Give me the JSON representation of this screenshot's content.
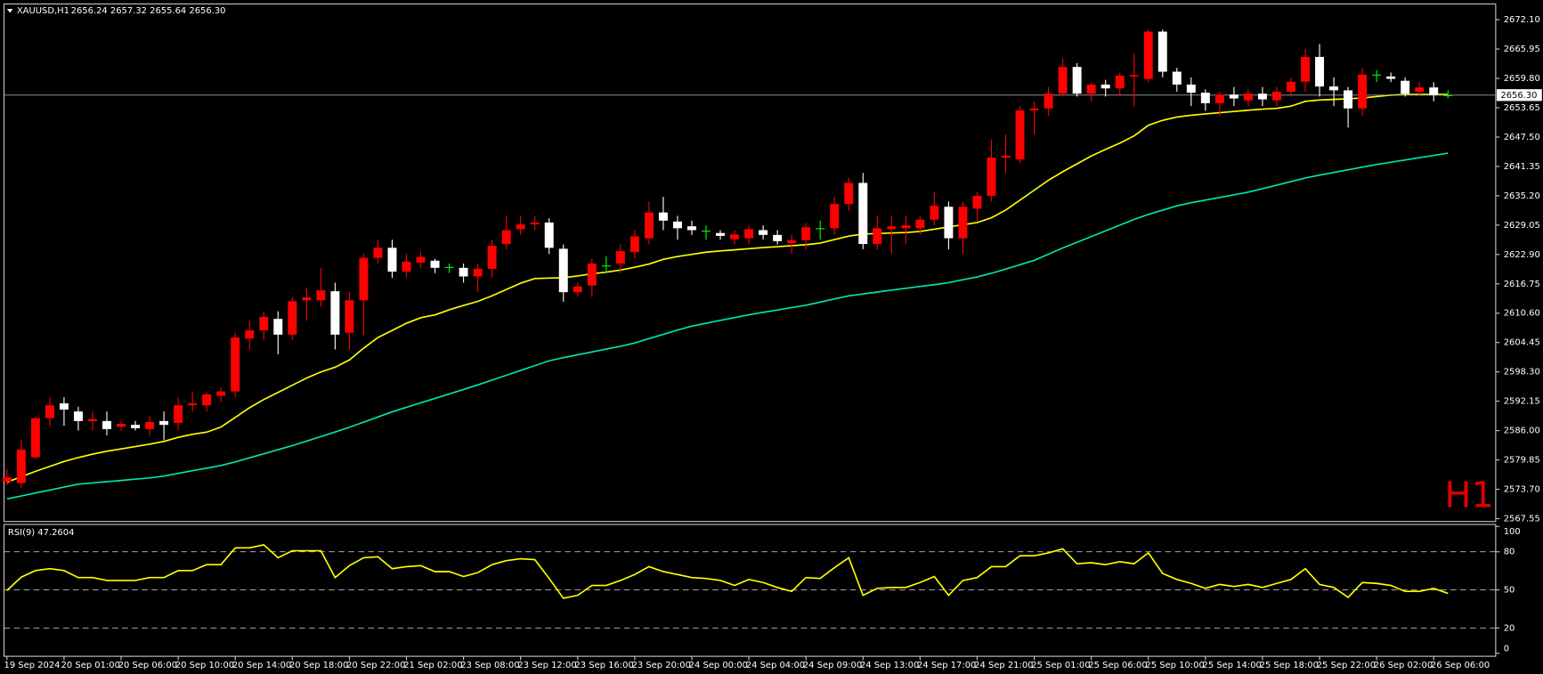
{
  "chart_data": [
    {
      "type": "candlestick",
      "symbol": "XAUUSD,H1",
      "header": "2656.24 2657.32 2655.64 2656.30",
      "watermark": "H1",
      "bull_color": "#ff0000",
      "bear_color": "#ffffff",
      "doji_color": "#00ff00",
      "categories": [
        "19 Sep 2024",
        null,
        null,
        null,
        "20 Sep 01:00",
        null,
        null,
        null,
        "20 Sep 06:00",
        null,
        null,
        null,
        "20 Sep 10:00",
        null,
        null,
        null,
        "20 Sep 14:00",
        null,
        null,
        null,
        "20 Sep 18:00",
        null,
        null,
        null,
        "20 Sep 22:00",
        null,
        null,
        null,
        "21 Sep 02:00",
        null,
        null,
        null,
        "23 Sep 08:00",
        null,
        null,
        null,
        "23 Sep 12:00",
        null,
        null,
        null,
        "23 Sep 16:00",
        null,
        null,
        null,
        "23 Sep 20:00",
        null,
        null,
        null,
        "24 Sep 00:00",
        null,
        null,
        null,
        "24 Sep 04:00",
        null,
        null,
        null,
        "24 Sep 09:00",
        null,
        null,
        null,
        "24 Sep 13:00",
        null,
        null,
        null,
        "24 Sep 17:00",
        null,
        null,
        null,
        "24 Sep 21:00",
        null,
        null,
        null,
        "25 Sep 01:00",
        null,
        null,
        null,
        "25 Sep 06:00",
        null,
        null,
        null,
        "25 Sep 10:00",
        null,
        null,
        null,
        "25 Sep 14:00",
        null,
        null,
        null,
        "25 Sep 18:00",
        null,
        null,
        null,
        "25 Sep 22:00",
        null,
        null,
        null,
        "26 Sep 02:00",
        null,
        null,
        null,
        "26 Sep 06:00",
        null
      ],
      "open": [
        2575.3,
        2575.0,
        2580.4,
        2588.6,
        2591.7,
        2590.0,
        2588.0,
        2588.0,
        2586.8,
        2587.2,
        2586.3,
        2588.0,
        2587.6,
        2591.3,
        2591.3,
        2593.3,
        2594.2,
        2605.3,
        2607.0,
        2609.4,
        2606.1,
        2613.3,
        2613.3,
        2615.2,
        2606.5,
        2613.3,
        2622.2,
        2624.3,
        2619.3,
        2621.2,
        2621.6,
        2620.2,
        2620.1,
        2618.3,
        2619.9,
        2625.1,
        2628.2,
        2629.2,
        2629.6,
        2624.1,
        2615.0,
        2616.4,
        2620.5,
        2621.0,
        2623.4,
        2626.3,
        2631.7,
        2629.8,
        2628.8,
        2627.8,
        2627.4,
        2626.1,
        2626.3,
        2628.0,
        2627.0,
        2625.3,
        2625.9,
        2628.3,
        2628.4,
        2633.5,
        2637.9,
        2625.1,
        2628.2,
        2628.4,
        2628.4,
        2630.2,
        2632.9,
        2626.3,
        2632.5,
        2635.2,
        2643.2,
        2642.8,
        2653.1,
        2653.5,
        2656.6,
        2662.2,
        2656.6,
        2658.5,
        2657.7,
        2660.2,
        2659.7,
        2669.6,
        2661.2,
        2658.5,
        2656.8,
        2654.6,
        2656.4,
        2655.2,
        2656.6,
        2655.2,
        2657.0,
        2659.1,
        2664.3,
        2658.1,
        2657.3,
        2653.5,
        2660.5,
        2660.2,
        2659.3,
        2657.0,
        2657.9,
        2656.24
      ],
      "high": [
        2578,
        2584,
        2589,
        2593,
        2593,
        2591,
        2590,
        2590,
        2588,
        2588,
        2589,
        2590,
        2593,
        2594,
        2594,
        2595,
        2606.5,
        2609,
        2611,
        2611,
        2614,
        2616,
        2620,
        2617,
        2615,
        2623,
        2626,
        2626,
        2623,
        2623.5,
        2622,
        2621,
        2621,
        2621,
        2626,
        2631,
        2631,
        2631,
        2630.5,
        2625,
        2617,
        2622,
        2622.5,
        2625,
        2628,
        2634,
        2635,
        2631,
        2630,
        2629,
        2628,
        2628,
        2629,
        2629,
        2628,
        2627,
        2629.5,
        2630,
        2635,
        2639,
        2640,
        2631,
        2631,
        2631,
        2631,
        2636,
        2634,
        2634,
        2636,
        2647,
        2648,
        2654,
        2655,
        2658,
        2664,
        2663,
        2659,
        2659.5,
        2661,
        2665,
        2670,
        2670,
        2662,
        2660,
        2657.5,
        2657,
        2658,
        2657.5,
        2658,
        2658,
        2660,
        2666,
        2667,
        2660,
        2658,
        2662,
        2661.5,
        2661,
        2660,
        2659,
        2659,
        2657.32
      ],
      "low": [
        2574.5,
        2574,
        2580,
        2587,
        2587,
        2586,
        2586,
        2585,
        2586,
        2586,
        2585,
        2584,
        2586,
        2590,
        2590,
        2592,
        2593,
        2603,
        2605,
        2602,
        2605,
        2609,
        2612,
        2603,
        2603,
        2606,
        2621,
        2618,
        2618,
        2620,
        2619,
        2619,
        2617,
        2615,
        2618,
        2624,
        2627,
        2628,
        2623,
        2613,
        2614,
        2614,
        2619,
        2619,
        2622,
        2625,
        2628,
        2626,
        2627,
        2626,
        2626,
        2625,
        2625,
        2626,
        2625,
        2623,
        2624,
        2626,
        2627,
        2632,
        2624,
        2624,
        2623,
        2625,
        2627,
        2629,
        2624,
        2623,
        2630,
        2634,
        2640,
        2642,
        2648,
        2652,
        2656,
        2656,
        2655,
        2656,
        2656,
        2654,
        2659,
        2660,
        2657,
        2654,
        2653,
        2652,
        2654,
        2654,
        2654,
        2654,
        2656,
        2657,
        2656,
        2654,
        2649.5,
        2652,
        2659,
        2659,
        2656,
        2656,
        2655,
        2655.64
      ],
      "close": [
        2576.2,
        2582.0,
        2588.6,
        2591.3,
        2590.4,
        2588.0,
        2588.4,
        2586.3,
        2587.4,
        2586.5,
        2587.8,
        2587.2,
        2591.3,
        2591.7,
        2593.6,
        2594.2,
        2605.5,
        2607.0,
        2609.8,
        2606.1,
        2613.1,
        2613.9,
        2615.4,
        2606.1,
        2613.3,
        2622.2,
        2624.3,
        2619.3,
        2621.4,
        2622.4,
        2620.1,
        2620.3,
        2618.3,
        2619.9,
        2624.7,
        2628.0,
        2629.2,
        2629.6,
        2624.3,
        2615.0,
        2616.2,
        2621.0,
        2620.6,
        2623.6,
        2626.7,
        2631.7,
        2630.0,
        2628.4,
        2628.0,
        2627.9,
        2626.8,
        2627.1,
        2628.2,
        2627.0,
        2625.7,
        2625.9,
        2628.6,
        2628.4,
        2633.5,
        2637.9,
        2625.1,
        2628.4,
        2628.8,
        2629.0,
        2630.2,
        2633.1,
        2626.3,
        2632.9,
        2635.2,
        2643.2,
        2643.6,
        2653.1,
        2653.5,
        2656.6,
        2662.2,
        2656.6,
        2658.5,
        2657.7,
        2660.4,
        2660.5,
        2669.6,
        2661.2,
        2658.5,
        2656.8,
        2654.6,
        2656.4,
        2655.6,
        2656.6,
        2655.4,
        2657.0,
        2659.1,
        2664.3,
        2658.1,
        2657.3,
        2653.5,
        2660.6,
        2660.6,
        2659.7,
        2656.6,
        2657.9,
        2656.3,
        2656.3
      ],
      "overlays": [
        {
          "color": "#ffff00",
          "values": [
            2575.19,
            2576.33,
            2577.46,
            2578.49,
            2579.52,
            2580.35,
            2581.07,
            2581.67,
            2582.16,
            2582.65,
            2583.17,
            2583.73,
            2584.59,
            2585.21,
            2585.67,
            2586.74,
            2588.76,
            2590.78,
            2592.51,
            2594.0,
            2595.5,
            2597.0,
            2598.29,
            2599.27,
            2600.8,
            2603.27,
            2605.5,
            2606.99,
            2608.49,
            2609.65,
            2610.24,
            2611.31,
            2612.22,
            2613.07,
            2614.24,
            2615.56,
            2616.88,
            2617.86,
            2617.95,
            2618.03,
            2618.4,
            2618.86,
            2619.19,
            2619.64,
            2620.22,
            2620.9,
            2621.87,
            2622.47,
            2622.92,
            2623.38,
            2623.65,
            2623.87,
            2624.12,
            2624.35,
            2624.53,
            2624.74,
            2624.94,
            2625.28,
            2626.02,
            2626.74,
            2627.19,
            2627.29,
            2627.4,
            2627.5,
            2627.73,
            2628.2,
            2628.68,
            2629.13,
            2629.6,
            2630.59,
            2632.2,
            2634.28,
            2636.37,
            2638.45,
            2640.24,
            2641.89,
            2643.52,
            2644.92,
            2646.24,
            2647.75,
            2649.98,
            2651.01,
            2651.71,
            2652.08,
            2652.35,
            2652.62,
            2652.86,
            2653.13,
            2653.36,
            2653.52,
            2653.98,
            2654.99,
            2655.27,
            2655.4,
            2655.52,
            2655.69,
            2656.0,
            2656.29,
            2656.43,
            2656.43,
            2656.43,
            2656.43
          ]
        },
        {
          "color": "#00e5b0",
          "values": [
            2571.69,
            2572.3,
            2572.92,
            2573.53,
            2574.15,
            2574.76,
            2575.03,
            2575.29,
            2575.55,
            2575.81,
            2576.08,
            2576.47,
            2577.02,
            2577.58,
            2578.13,
            2578.69,
            2579.43,
            2580.29,
            2581.14,
            2582.0,
            2582.85,
            2583.79,
            2584.74,
            2585.7,
            2586.69,
            2587.77,
            2588.85,
            2589.93,
            2590.88,
            2591.81,
            2592.74,
            2593.68,
            2594.61,
            2595.57,
            2596.58,
            2597.59,
            2598.6,
            2599.61,
            2600.62,
            2601.28,
            2601.88,
            2602.47,
            2603.07,
            2603.67,
            2604.37,
            2605.27,
            2606.16,
            2607.06,
            2607.89,
            2608.49,
            2609.09,
            2609.68,
            2610.27,
            2610.77,
            2611.27,
            2611.77,
            2612.27,
            2612.93,
            2613.6,
            2614.23,
            2614.63,
            2615.03,
            2615.43,
            2615.82,
            2616.2,
            2616.57,
            2617.0,
            2617.6,
            2618.2,
            2618.95,
            2619.85,
            2620.75,
            2621.67,
            2622.96,
            2624.26,
            2625.46,
            2626.65,
            2627.85,
            2629.04,
            2630.24,
            2631.29,
            2632.19,
            2633.09,
            2633.74,
            2634.3,
            2634.85,
            2635.41,
            2635.96,
            2636.69,
            2637.44,
            2638.18,
            2638.93,
            2639.53,
            2640.09,
            2640.64,
            2641.2,
            2641.75,
            2642.23,
            2642.7,
            2643.18,
            2643.65,
            2644.12
          ]
        }
      ],
      "price_line": {
        "value": 2656.3,
        "label": "2656.30"
      },
      "ylim": [
        2566.95,
        2675.4
      ],
      "yticks": [
        {
          "value": 2672.1,
          "label": "2672.10"
        },
        2665.95,
        {
          "value": 2659.8,
          "label": "2659.80"
        },
        2653.65,
        {
          "value": 2647.5,
          "label": "2647.50"
        },
        2641.35,
        {
          "value": 2635.2,
          "label": "2635.20"
        },
        2629.05,
        {
          "value": 2622.9,
          "label": "2622.90"
        },
        2616.75,
        {
          "value": 2610.6,
          "label": "2610.60"
        },
        2604.45,
        {
          "value": 2598.3,
          "label": "2598.30"
        },
        2592.15,
        {
          "value": 2586.0,
          "label": "2586.00"
        },
        2579.85,
        {
          "value": 2573.7,
          "label": "2573.70"
        },
        2567.55
      ]
    },
    {
      "type": "line",
      "title": "RSI(9) 47.2604",
      "color": "#ffff00",
      "values": [
        49.6,
        60,
        65.2,
        66.7,
        65.2,
        59.7,
        59.7,
        57.4,
        57.4,
        57.4,
        59.7,
        59.7,
        65.2,
        65.2,
        69.9,
        69.9,
        83.1,
        83.1,
        85.5,
        75.3,
        80.8,
        80.8,
        80.8,
        59.7,
        69.1,
        75.3,
        76.1,
        66.7,
        68.3,
        69.1,
        64.4,
        64.4,
        60.5,
        63.6,
        69.9,
        73.0,
        74.5,
        73.8,
        59.0,
        43.4,
        45.7,
        53.5,
        53.5,
        57.4,
        62.1,
        68.3,
        64.4,
        62.1,
        59.7,
        59.0,
        57.4,
        53.5,
        58.2,
        55.8,
        51.9,
        48.8,
        59.7,
        59.0,
        67.5,
        75.3,
        45.7,
        51.2,
        51.9,
        51.9,
        55.8,
        60.5,
        45.7,
        57.4,
        59.7,
        68.3,
        68.3,
        76.9,
        76.9,
        79.2,
        82.3,
        70.6,
        71.4,
        69.9,
        72.2,
        70.6,
        79.2,
        62.9,
        58.2,
        55.1,
        51.2,
        54.3,
        52.7,
        54.3,
        51.9,
        55.1,
        58.2,
        66.7,
        54.3,
        51.9,
        44.1,
        55.8,
        55.1,
        53.5,
        48.8,
        48.8,
        51.2,
        47.26
      ],
      "ylim": [
        0,
        100
      ],
      "yticks": [
        0,
        20,
        50,
        80,
        100
      ],
      "levels": [
        20,
        50,
        80
      ]
    }
  ]
}
